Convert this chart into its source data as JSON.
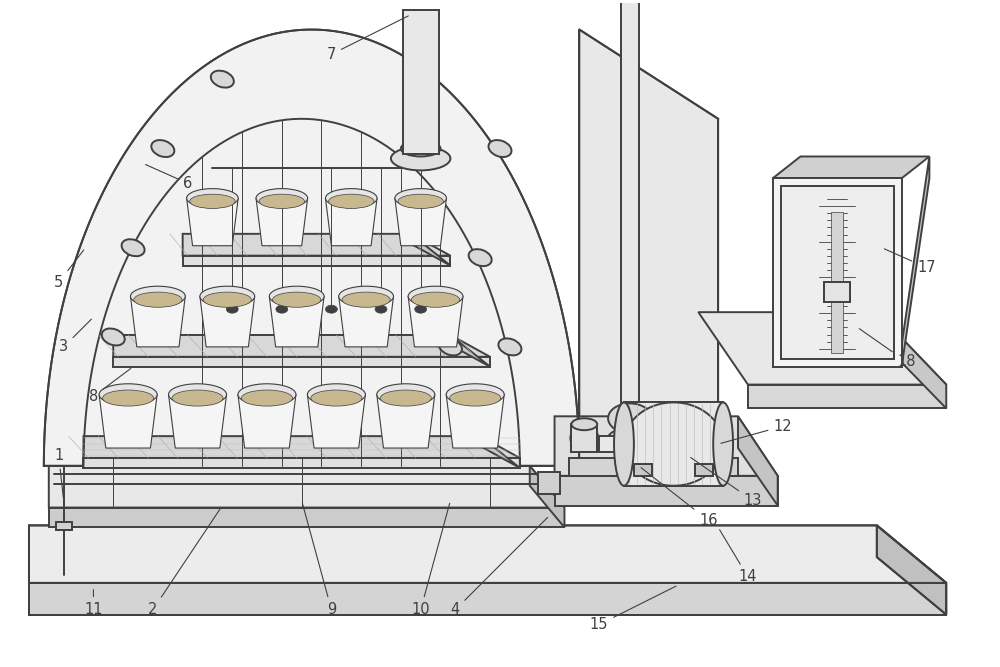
{
  "bg_color": "#ffffff",
  "lc": "#404040",
  "lw": 1.4,
  "tlw": 0.7,
  "fs": 10.5,
  "figsize": [
    10.0,
    6.67
  ],
  "dpi": 100
}
